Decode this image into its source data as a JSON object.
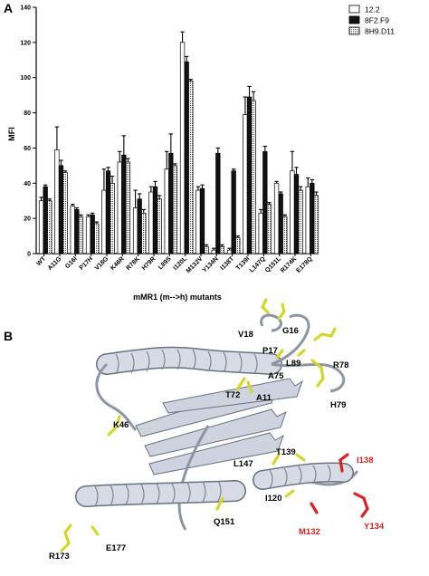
{
  "panels": {
    "top_letter": "A",
    "bottom_letter": "B"
  },
  "chart_data": {
    "type": "bar",
    "title": "",
    "xlabel": "mMR1 (m-->h) mutants",
    "ylabel": "MFI",
    "ylim": [
      0,
      140
    ],
    "yticks": [
      "0",
      "20",
      "40",
      "60",
      "80",
      "100",
      "120",
      "140"
    ],
    "grid": false,
    "legend_position": "top-right",
    "categories": [
      "WT",
      "A11G",
      "G16I",
      "P17H",
      "V18G",
      "K46R",
      "R78K",
      "H79R",
      "L89S",
      "I120L",
      "M132V",
      "Y134N",
      "I138T",
      "T139I",
      "L147Q",
      "Q151L",
      "R174K",
      "E178Q"
    ],
    "series": [
      {
        "name": "12.2",
        "color": "#ffffff",
        "pattern": "open",
        "values": [
          30,
          59,
          27,
          21,
          36,
          52,
          26,
          35,
          48,
          120,
          36,
          2,
          2,
          79,
          23,
          40,
          47,
          38
        ],
        "errors": [
          2,
          13,
          1,
          1,
          12,
          6,
          10,
          3,
          10,
          6,
          2,
          1,
          1,
          10,
          2,
          1,
          11,
          5
        ]
      },
      {
        "name": "8F2.F9",
        "color": "#111111",
        "pattern": "solid",
        "values": [
          38,
          50,
          25,
          22,
          47,
          56,
          31,
          38,
          57,
          109,
          37,
          57,
          47,
          89,
          58,
          34,
          45,
          40
        ],
        "errors": [
          1,
          3,
          1,
          1,
          2,
          11,
          3,
          3,
          11,
          3,
          2,
          3,
          1,
          6,
          3,
          1,
          4,
          2
        ]
      },
      {
        "name": "8H9.D11",
        "color": "#dddddd",
        "pattern": "dotted",
        "values": [
          30,
          46,
          21,
          17,
          40,
          52,
          23,
          31,
          50,
          98,
          4,
          4,
          9,
          87,
          28,
          21,
          36,
          33
        ],
        "errors": [
          1,
          1,
          1,
          1,
          4,
          2,
          2,
          2,
          1,
          1,
          1,
          1,
          1,
          5,
          1,
          1,
          2,
          2
        ]
      }
    ]
  },
  "structure": {
    "helix_color": "#c8d0de",
    "yellow_color": "#d6d62a",
    "red_color": "#e02020",
    "labels_black": [
      "V18",
      "G16",
      "P17",
      "L89",
      "R78",
      "A75",
      "T72",
      "A11",
      "H79",
      "K46",
      "L147",
      "T139",
      "I120",
      "Q151",
      "R173",
      "E177"
    ],
    "labels_red": [
      "I138",
      "M132",
      "Y134"
    ]
  }
}
